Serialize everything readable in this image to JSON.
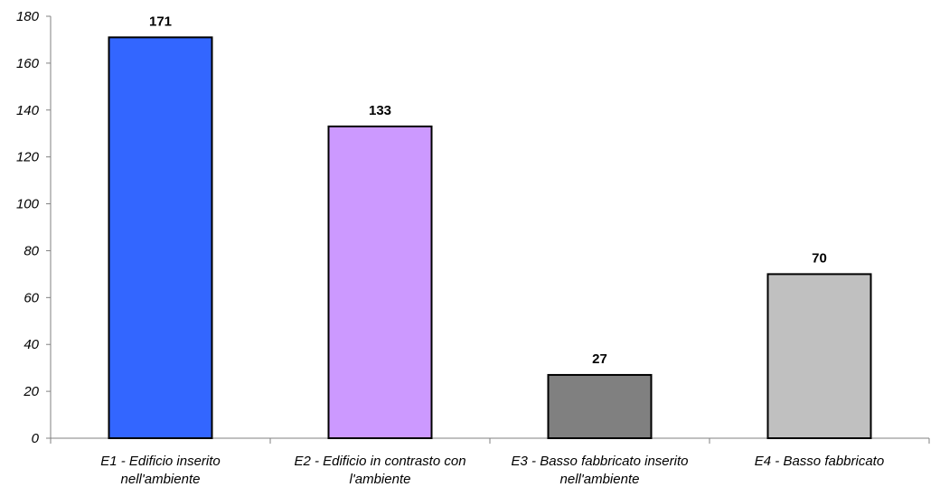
{
  "chart_data": {
    "type": "bar",
    "categories": [
      [
        "E1 - Edificio inserito",
        "nell'ambiente"
      ],
      [
        "E2 - Edificio in contrasto con",
        "l'ambiente"
      ],
      [
        "E3 - Basso fabbricato inserito",
        "nell'ambiente"
      ],
      [
        "E4 - Basso fabbricato"
      ]
    ],
    "values": [
      171,
      133,
      27,
      70
    ],
    "colors": [
      "#3366ff",
      "#cc99ff",
      "#808080",
      "#c0c0c0"
    ],
    "ylim": [
      0,
      180
    ],
    "yticks": [
      0,
      20,
      40,
      60,
      80,
      100,
      120,
      140,
      160,
      180
    ],
    "data_labels": [
      "171",
      "133",
      "27",
      "70"
    ],
    "grid": false,
    "legend": false
  }
}
